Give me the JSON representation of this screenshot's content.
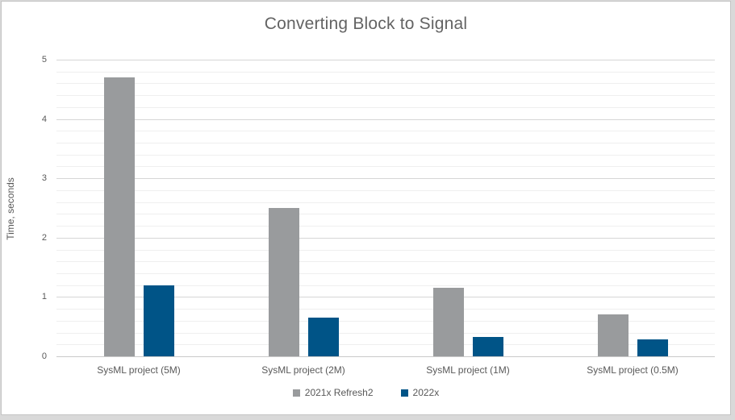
{
  "page": {
    "background_color": "#d9d9d9",
    "chart_background": "#ffffff",
    "chart_border_color": "#c4c4c4",
    "text_color": "#595959",
    "title_color": "#636363",
    "gridline_major_color": "#d6d6d6",
    "gridline_minor_color": "#efefef",
    "axis_line_color": "#c9c9c9"
  },
  "chart_data": {
    "type": "bar",
    "title": "Converting Block to Signal",
    "xlabel": "",
    "ylabel": "Time, seconds",
    "categories": [
      "SysML project (5M)",
      "SysML project (2M)",
      "SysML project (1M)",
      "SysML project (0.5M)"
    ],
    "series": [
      {
        "name": "2021x Refresh2",
        "color": "#999b9d",
        "values": [
          4.7,
          2.5,
          1.15,
          0.7
        ]
      },
      {
        "name": "2022x",
        "color": "#005487",
        "values": [
          1.2,
          0.65,
          0.32,
          0.28
        ]
      }
    ],
    "ylim": [
      0,
      5
    ],
    "yticks": [
      0,
      1,
      2,
      3,
      4,
      5
    ],
    "minor_tick_step": 0.2,
    "grid": true,
    "legend_position": "bottom"
  }
}
